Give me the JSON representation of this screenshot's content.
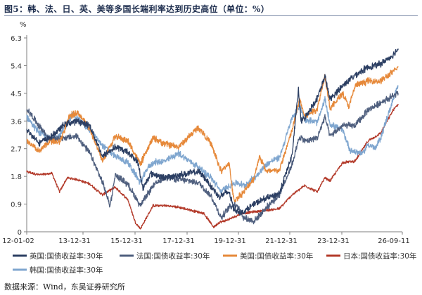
{
  "title": "图5：韩、法、日、英、美等多国长端利率达到历史高位（单位：%）",
  "source": "数据来源：Wind，东吴证券研究所",
  "chart_data": {
    "type": "line",
    "title": "图5：韩、法、日、英、美等多国长端利率达到历史高位（单位：%）",
    "unit_label": "%",
    "x_ticks": [
      "12-01-02",
      "13-12-31",
      "15-12-31",
      "17-12-31",
      "19-12-31",
      "21-12-31",
      "23-12-31",
      "26-09-11"
    ],
    "x_range": [
      "2012-01-02",
      "2026-09-11"
    ],
    "y_ticks": [
      "0",
      "0.9",
      "1.8",
      "2.7",
      "3.6",
      "4.5",
      "5.4",
      "6.3"
    ],
    "ylim": [
      0,
      6.3
    ],
    "grid": false,
    "legend_position": "bottom",
    "series": [
      {
        "name": "英国:国债收益率:30年",
        "color": "#2c3f63",
        "points": [
          [
            2012.0,
            3.3
          ],
          [
            2012.5,
            2.9
          ],
          [
            2013.0,
            3.1
          ],
          [
            2013.5,
            3.5
          ],
          [
            2014.0,
            3.6
          ],
          [
            2014.5,
            3.45
          ],
          [
            2015.0,
            2.45
          ],
          [
            2015.5,
            2.75
          ],
          [
            2016.0,
            2.6
          ],
          [
            2016.4,
            2.25
          ],
          [
            2016.6,
            1.4
          ],
          [
            2016.9,
            1.9
          ],
          [
            2017.5,
            1.75
          ],
          [
            2018.0,
            1.85
          ],
          [
            2018.8,
            1.95
          ],
          [
            2019.0,
            1.8
          ],
          [
            2019.6,
            1.15
          ],
          [
            2020.0,
            1.3
          ],
          [
            2020.2,
            0.75
          ],
          [
            2020.5,
            0.6
          ],
          [
            2021.0,
            0.9
          ],
          [
            2021.5,
            1.1
          ],
          [
            2022.0,
            1.25
          ],
          [
            2022.5,
            2.5
          ],
          [
            2022.75,
            4.6
          ],
          [
            2022.85,
            3.6
          ],
          [
            2023.0,
            3.7
          ],
          [
            2023.5,
            4.35
          ],
          [
            2023.8,
            5.05
          ],
          [
            2024.0,
            4.3
          ],
          [
            2024.5,
            4.75
          ],
          [
            2025.0,
            5.1
          ],
          [
            2025.5,
            5.35
          ],
          [
            2026.0,
            5.45
          ],
          [
            2026.5,
            5.75
          ],
          [
            2026.7,
            5.95
          ]
        ]
      },
      {
        "name": "法国:国债收益率:30年",
        "color": "#4f5f7e",
        "points": [
          [
            2012.0,
            4.0
          ],
          [
            2012.4,
            3.55
          ],
          [
            2012.9,
            3.0
          ],
          [
            2013.5,
            3.05
          ],
          [
            2014.0,
            3.1
          ],
          [
            2014.5,
            2.55
          ],
          [
            2015.0,
            1.6
          ],
          [
            2015.3,
            0.85
          ],
          [
            2015.5,
            1.85
          ],
          [
            2016.0,
            1.55
          ],
          [
            2016.5,
            0.85
          ],
          [
            2017.0,
            1.5
          ],
          [
            2017.5,
            1.8
          ],
          [
            2018.0,
            1.7
          ],
          [
            2018.8,
            1.6
          ],
          [
            2019.3,
            1.15
          ],
          [
            2019.7,
            0.45
          ],
          [
            2020.0,
            0.8
          ],
          [
            2020.3,
            0.9
          ],
          [
            2020.6,
            0.45
          ],
          [
            2021.0,
            0.35
          ],
          [
            2021.5,
            0.8
          ],
          [
            2022.0,
            1.2
          ],
          [
            2022.5,
            2.2
          ],
          [
            2022.8,
            3.1
          ],
          [
            2023.0,
            2.95
          ],
          [
            2023.5,
            3.05
          ],
          [
            2023.8,
            3.75
          ],
          [
            2024.0,
            3.1
          ],
          [
            2024.5,
            3.45
          ],
          [
            2025.0,
            3.45
          ],
          [
            2025.5,
            3.95
          ],
          [
            2026.0,
            4.2
          ],
          [
            2026.7,
            4.5
          ]
        ]
      },
      {
        "name": "美国:国债收益率:30年",
        "color": "#e6893a",
        "points": [
          [
            2012.0,
            2.95
          ],
          [
            2012.5,
            2.6
          ],
          [
            2012.9,
            2.95
          ],
          [
            2013.3,
            2.9
          ],
          [
            2013.7,
            3.75
          ],
          [
            2014.0,
            3.9
          ],
          [
            2014.5,
            3.35
          ],
          [
            2015.0,
            2.3
          ],
          [
            2015.5,
            3.1
          ],
          [
            2016.0,
            2.95
          ],
          [
            2016.5,
            2.2
          ],
          [
            2017.0,
            3.05
          ],
          [
            2017.5,
            2.85
          ],
          [
            2018.0,
            2.75
          ],
          [
            2018.8,
            3.4
          ],
          [
            2019.3,
            2.85
          ],
          [
            2019.7,
            1.95
          ],
          [
            2020.0,
            2.25
          ],
          [
            2020.2,
            1.0
          ],
          [
            2020.6,
            1.3
          ],
          [
            2021.0,
            1.75
          ],
          [
            2021.2,
            2.45
          ],
          [
            2021.5,
            1.95
          ],
          [
            2022.0,
            2.0
          ],
          [
            2022.5,
            3.3
          ],
          [
            2022.8,
            4.3
          ],
          [
            2023.0,
            3.75
          ],
          [
            2023.5,
            4.0
          ],
          [
            2023.8,
            5.1
          ],
          [
            2024.0,
            4.0
          ],
          [
            2024.5,
            4.5
          ],
          [
            2024.75,
            4.05
          ],
          [
            2025.0,
            4.75
          ],
          [
            2025.5,
            4.9
          ],
          [
            2026.0,
            4.9
          ],
          [
            2026.5,
            5.2
          ],
          [
            2026.7,
            5.35
          ]
        ]
      },
      {
        "name": "日本:国债收益率:30年",
        "color": "#b33a2a",
        "points": [
          [
            2012.0,
            1.95
          ],
          [
            2012.5,
            1.85
          ],
          [
            2013.0,
            1.9
          ],
          [
            2013.3,
            1.3
          ],
          [
            2013.6,
            1.75
          ],
          [
            2014.0,
            1.7
          ],
          [
            2014.5,
            1.55
          ],
          [
            2015.0,
            1.2
          ],
          [
            2015.5,
            1.45
          ],
          [
            2016.0,
            1.05
          ],
          [
            2016.3,
            0.3
          ],
          [
            2016.5,
            0.1
          ],
          [
            2016.8,
            0.55
          ],
          [
            2017.0,
            0.85
          ],
          [
            2017.5,
            0.85
          ],
          [
            2018.0,
            0.8
          ],
          [
            2018.5,
            0.7
          ],
          [
            2019.0,
            0.6
          ],
          [
            2019.4,
            0.15
          ],
          [
            2019.6,
            0.3
          ],
          [
            2020.0,
            0.4
          ],
          [
            2020.5,
            0.6
          ],
          [
            2021.0,
            0.65
          ],
          [
            2021.5,
            0.7
          ],
          [
            2022.0,
            0.75
          ],
          [
            2022.5,
            1.2
          ],
          [
            2023.0,
            1.5
          ],
          [
            2023.5,
            1.3
          ],
          [
            2023.8,
            1.75
          ],
          [
            2024.0,
            1.65
          ],
          [
            2024.5,
            2.25
          ],
          [
            2025.0,
            2.3
          ],
          [
            2025.5,
            2.95
          ],
          [
            2026.0,
            3.2
          ],
          [
            2026.5,
            3.95
          ],
          [
            2026.7,
            4.15
          ]
        ]
      },
      {
        "name": "韩国:国债收益率:30年",
        "color": "#7fa6cf",
        "points": [
          [
            2012.0,
            3.75
          ],
          [
            2012.4,
            3.3
          ],
          [
            2012.8,
            3.05
          ],
          [
            2013.3,
            3.1
          ],
          [
            2013.8,
            3.8
          ],
          [
            2014.0,
            3.7
          ],
          [
            2014.5,
            3.3
          ],
          [
            2015.0,
            2.8
          ],
          [
            2015.5,
            2.45
          ],
          [
            2016.0,
            2.25
          ],
          [
            2016.5,
            1.6
          ],
          [
            2016.8,
            2.1
          ],
          [
            2017.0,
            2.25
          ],
          [
            2017.5,
            2.3
          ],
          [
            2018.0,
            2.55
          ],
          [
            2018.8,
            2.1
          ],
          [
            2019.3,
            1.75
          ],
          [
            2019.7,
            1.3
          ],
          [
            2020.0,
            1.5
          ],
          [
            2020.3,
            1.6
          ],
          [
            2020.6,
            1.5
          ],
          [
            2021.0,
            1.75
          ],
          [
            2021.5,
            2.2
          ],
          [
            2021.8,
            2.35
          ],
          [
            2022.0,
            2.4
          ],
          [
            2022.5,
            3.7
          ],
          [
            2022.8,
            4.1
          ],
          [
            2023.0,
            3.65
          ],
          [
            2023.5,
            3.55
          ],
          [
            2023.8,
            4.3
          ],
          [
            2024.0,
            3.5
          ],
          [
            2024.5,
            3.3
          ],
          [
            2024.8,
            2.65
          ],
          [
            2025.0,
            2.6
          ],
          [
            2025.3,
            2.55
          ],
          [
            2025.5,
            2.85
          ],
          [
            2025.8,
            2.7
          ],
          [
            2026.0,
            3.05
          ],
          [
            2026.5,
            4.3
          ],
          [
            2026.7,
            4.75
          ]
        ]
      }
    ]
  }
}
